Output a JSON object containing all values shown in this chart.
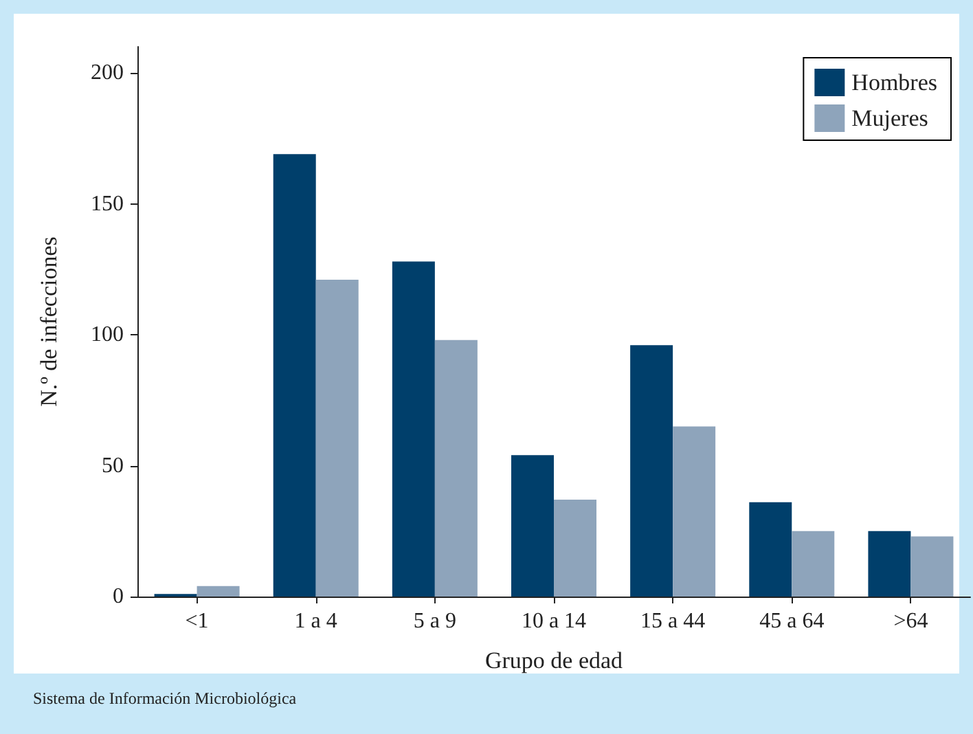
{
  "chart_data": {
    "type": "bar",
    "xlabel": "Grupo de edad",
    "ylabel": "N.º de infecciones",
    "categories": [
      "<1",
      "1 a 4",
      "5 a 9",
      "10 a 14",
      "15 a 44",
      "45 a 64",
      ">64"
    ],
    "series": [
      {
        "name": "Hombres",
        "color": "#003f6b",
        "values": [
          1,
          169,
          128,
          54,
          96,
          36,
          25
        ]
      },
      {
        "name": "Mujeres",
        "color": "#8ea4bb",
        "values": [
          4,
          121,
          98,
          37,
          65,
          25,
          23
        ]
      }
    ],
    "ylim": [
      0,
      210
    ],
    "yticks": [
      0,
      50,
      100,
      150,
      200
    ],
    "grid": false,
    "legend": "top right",
    "annotations": [
      "Sistema de Información Microbiológica"
    ]
  }
}
